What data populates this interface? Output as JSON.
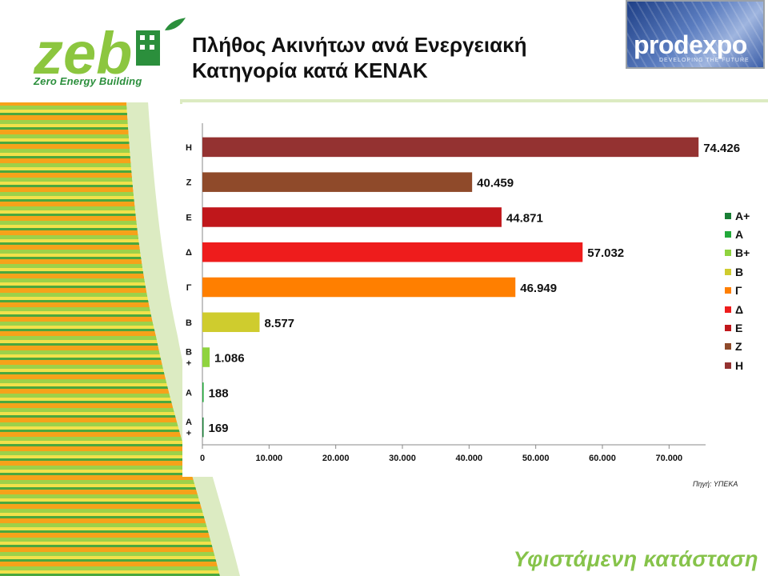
{
  "header": {
    "title_line1": "Πλήθος Ακινήτων ανά Ενεργειακή",
    "title_line2": "Κατηγορία κατά ΚΕΝΑΚ"
  },
  "logos": {
    "zeb_mark": "zeb",
    "zeb_subtitle": "Zero Energy Building",
    "prodexpo_name": "prodexpo",
    "prodexpo_tagline": "DEVELOPING THE FUTURE"
  },
  "source_note": "Πηγή: ΥΠΕΚΑ",
  "footer_text": "Υφιστάμενη κατάσταση",
  "colors": {
    "zeb_green": "#2b8f3c",
    "lime": "#86c34a",
    "stripe_orange": "#f6a21a",
    "stripe_yellow": "#f2e14b"
  },
  "chart_data": {
    "type": "bar",
    "orientation": "horizontal",
    "xlim": [
      0,
      75000
    ],
    "x_ticks": [
      0,
      10000,
      20000,
      30000,
      40000,
      50000,
      60000,
      70000
    ],
    "x_tick_labels": [
      "0",
      "10.000",
      "20.000",
      "30.000",
      "40.000",
      "50.000",
      "60.000",
      "70.000"
    ],
    "grid": false,
    "legend_position": "right",
    "categories": [
      {
        "label": "Η",
        "value": 74426,
        "value_label": "74.426",
        "color": "#943231"
      },
      {
        "label": "Ζ",
        "value": 40459,
        "value_label": "40.459",
        "color": "#8f4a2a"
      },
      {
        "label": "Ε",
        "value": 44871,
        "value_label": "44.871",
        "color": "#c0171b"
      },
      {
        "label": "Δ",
        "value": 57032,
        "value_label": "57.032",
        "color": "#ee1c1c"
      },
      {
        "label": "Γ",
        "value": 46949,
        "value_label": "46.949",
        "color": "#ff7f00"
      },
      {
        "label": "Β",
        "value": 8577,
        "value_label": "8.577",
        "color": "#cfcc2e"
      },
      {
        "label": "Β\n+",
        "value": 1086,
        "value_label": "1.086",
        "color": "#8fd33f"
      },
      {
        "label": "Α",
        "value": 188,
        "value_label": "188",
        "color": "#22a93a"
      },
      {
        "label": "Α\n+",
        "value": 169,
        "value_label": "169",
        "color": "#1a7f36"
      }
    ],
    "legend": [
      {
        "label": "Α+",
        "color": "#1a7f36"
      },
      {
        "label": "Α",
        "color": "#22a93a"
      },
      {
        "label": "Β+",
        "color": "#8fd33f"
      },
      {
        "label": "Β",
        "color": "#cfcc2e"
      },
      {
        "label": "Γ",
        "color": "#ff7f00"
      },
      {
        "label": "Δ",
        "color": "#ee1c1c"
      },
      {
        "label": "Ε",
        "color": "#c0171b"
      },
      {
        "label": "Ζ",
        "color": "#8f4a2a"
      },
      {
        "label": "Η",
        "color": "#943231"
      }
    ]
  }
}
